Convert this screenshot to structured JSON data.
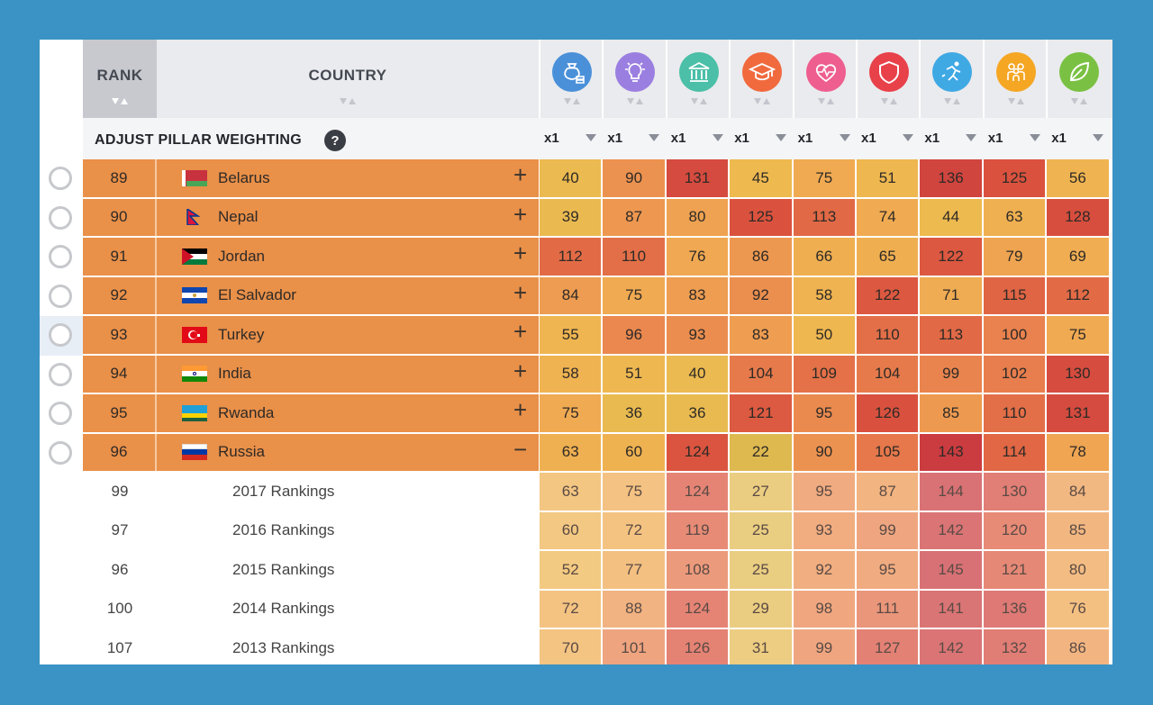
{
  "header": {
    "rank_label": "RANK",
    "country_label": "COUNTRY",
    "adjust_label": "ADJUST PILLAR WEIGHTING",
    "help_label": "?"
  },
  "pillars": [
    {
      "icon": "money-bag-icon",
      "color": "#4a90d9",
      "weight": "x1"
    },
    {
      "icon": "lightbulb-icon",
      "color": "#9b7fe0",
      "weight": "x1"
    },
    {
      "icon": "bank-building-icon",
      "color": "#4bbfa8",
      "weight": "x1"
    },
    {
      "icon": "graduation-cap-icon",
      "color": "#f06a3e",
      "weight": "x1"
    },
    {
      "icon": "heart-pulse-icon",
      "color": "#ee5e8f",
      "weight": "x1"
    },
    {
      "icon": "shield-icon",
      "color": "#e8414a",
      "weight": "x1"
    },
    {
      "icon": "running-person-icon",
      "color": "#3fa9e4",
      "weight": "x1"
    },
    {
      "icon": "people-group-icon",
      "color": "#f5a623",
      "weight": "x1"
    },
    {
      "icon": "leaf-icon",
      "color": "#7ac143",
      "weight": "x1"
    }
  ],
  "countries": [
    {
      "rank": "89",
      "name": "Belarus",
      "flag": "belarus",
      "toggle": "+",
      "values": [
        40,
        90,
        131,
        45,
        75,
        51,
        136,
        125,
        56
      ]
    },
    {
      "rank": "90",
      "name": "Nepal",
      "flag": "nepal",
      "toggle": "+",
      "values": [
        39,
        87,
        80,
        125,
        113,
        74,
        44,
        63,
        128
      ]
    },
    {
      "rank": "91",
      "name": "Jordan",
      "flag": "jordan",
      "toggle": "+",
      "values": [
        112,
        110,
        76,
        86,
        66,
        65,
        122,
        79,
        69
      ]
    },
    {
      "rank": "92",
      "name": "El Salvador",
      "flag": "elsalvador",
      "toggle": "+",
      "values": [
        84,
        75,
        83,
        92,
        58,
        122,
        71,
        115,
        112
      ]
    },
    {
      "rank": "93",
      "name": "Turkey",
      "flag": "turkey",
      "toggle": "+",
      "values": [
        55,
        96,
        93,
        83,
        50,
        110,
        113,
        100,
        75
      ]
    },
    {
      "rank": "94",
      "name": "India",
      "flag": "india",
      "toggle": "+",
      "values": [
        58,
        51,
        40,
        104,
        109,
        104,
        99,
        102,
        130
      ]
    },
    {
      "rank": "95",
      "name": "Rwanda",
      "flag": "rwanda",
      "toggle": "+",
      "values": [
        75,
        36,
        36,
        121,
        95,
        126,
        85,
        110,
        131
      ]
    },
    {
      "rank": "96",
      "name": "Russia",
      "flag": "russia",
      "toggle": "−",
      "values": [
        63,
        60,
        124,
        22,
        90,
        105,
        143,
        114,
        78
      ]
    }
  ],
  "history": [
    {
      "rank": "99",
      "label": "2017 Rankings",
      "values": [
        63,
        75,
        124,
        27,
        95,
        87,
        144,
        130,
        84
      ]
    },
    {
      "rank": "97",
      "label": "2016 Rankings",
      "values": [
        60,
        72,
        119,
        25,
        93,
        99,
        142,
        120,
        85
      ]
    },
    {
      "rank": "96",
      "label": "2015 Rankings",
      "values": [
        52,
        77,
        108,
        25,
        92,
        95,
        145,
        121,
        80
      ]
    },
    {
      "rank": "100",
      "label": "2014 Rankings",
      "values": [
        72,
        88,
        124,
        29,
        98,
        111,
        141,
        136,
        76
      ]
    },
    {
      "rank": "107",
      "label": "2013 Rankings",
      "values": [
        70,
        101,
        126,
        31,
        99,
        127,
        142,
        132,
        86
      ]
    }
  ]
}
